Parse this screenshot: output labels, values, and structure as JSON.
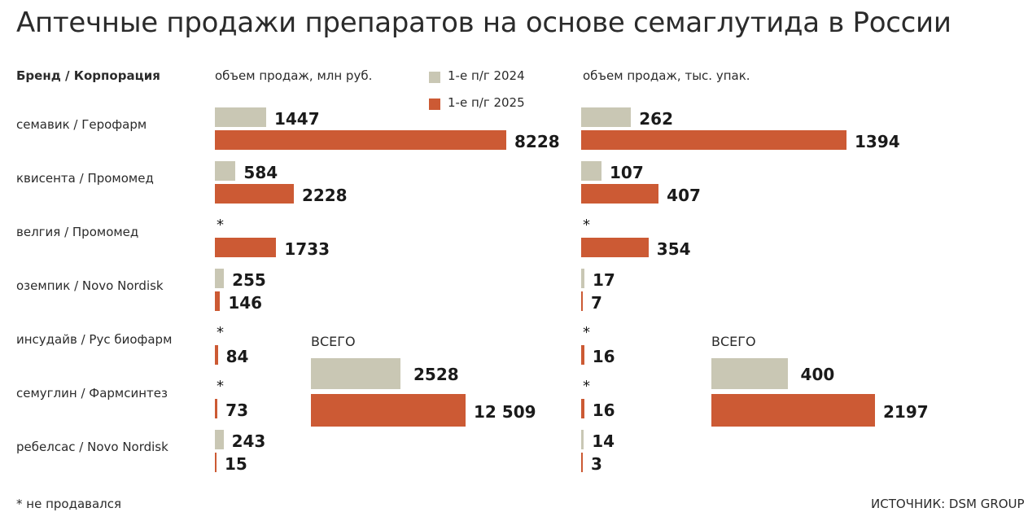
{
  "title": "Аптечные продажи препаратов на основе семаглутида в России",
  "brand_header": "Бренд / Корпорация",
  "chart_data": [
    {
      "type": "bar",
      "orientation": "horizontal",
      "subtitle": "объем продаж, млн руб.",
      "categories": [
        "семавик / Герофарм",
        "квисента / Промомед",
        "велгия / Промомед",
        "оземпик / Novo Nordisk",
        "инсудайв / Рус биофарм",
        "семуглин / Фармсинтез",
        "ребелсас / Novo Nordisk"
      ],
      "series": [
        {
          "name": "1-е п/г 2024",
          "values": [
            1447,
            584,
            null,
            255,
            null,
            null,
            243
          ]
        },
        {
          "name": "1-е п/г 2025",
          "values": [
            8228,
            2228,
            1733,
            146,
            84,
            73,
            15
          ]
        }
      ],
      "total": {
        "label": "ВСЕГО",
        "values_2024": 2528,
        "values_2025": "12 509",
        "value_2025_numeric": 12509
      },
      "xlim": [
        0,
        8228
      ]
    },
    {
      "type": "bar",
      "orientation": "horizontal",
      "subtitle": "объем продаж, тыс. упак.",
      "categories": [
        "семавик / Герофарм",
        "квисента / Промомед",
        "велгия / Промомед",
        "оземпик / Novo Nordisk",
        "инсудайв / Рус биофарм",
        "семуглин / Фармсинтез",
        "ребелсас / Novo Nordisk"
      ],
      "series": [
        {
          "name": "1-е п/г 2024",
          "values": [
            262,
            107,
            null,
            17,
            null,
            null,
            14
          ]
        },
        {
          "name": "1-е п/г 2025",
          "values": [
            1394,
            407,
            354,
            7,
            16,
            16,
            3
          ]
        }
      ],
      "total": {
        "label": "ВСЕГО",
        "values_2024": 400,
        "values_2025": "2197",
        "value_2025_numeric": 2197
      },
      "xlim": [
        0,
        1394
      ]
    }
  ],
  "legend": [
    {
      "label": "1-е п/г 2024",
      "color": "#c9c7b4"
    },
    {
      "label": "1-е п/г 2025",
      "color": "#cc5a34"
    }
  ],
  "not_sold_mark": "*",
  "footnote": "* не продавался",
  "source": "ИСТОЧНИК: DSM GROUP"
}
